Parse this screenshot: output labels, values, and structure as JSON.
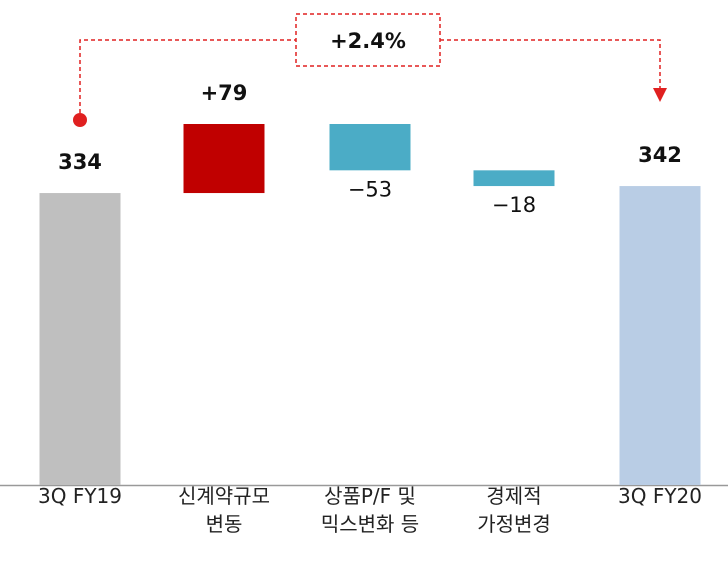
{
  "chart_data": {
    "type": "waterfall",
    "categories": [
      "3Q FY19",
      "신계약규모\n변동",
      "상품P/F 및\n믹스변화 등",
      "경제적\n가정변경",
      "3Q FY20"
    ],
    "values": [
      334,
      79,
      -53,
      -18,
      342
    ],
    "value_labels": [
      "334",
      "+79",
      "−53",
      "−18",
      "342"
    ],
    "measures": [
      "absolute",
      "relative",
      "relative",
      "relative",
      "absolute"
    ],
    "colors": [
      "#bfbfbf",
      "#c00000",
      "#4bacc6",
      "#4bacc6",
      "#b9cde5"
    ],
    "annotation": "+2.4%",
    "annotation_color": "#e02020"
  }
}
